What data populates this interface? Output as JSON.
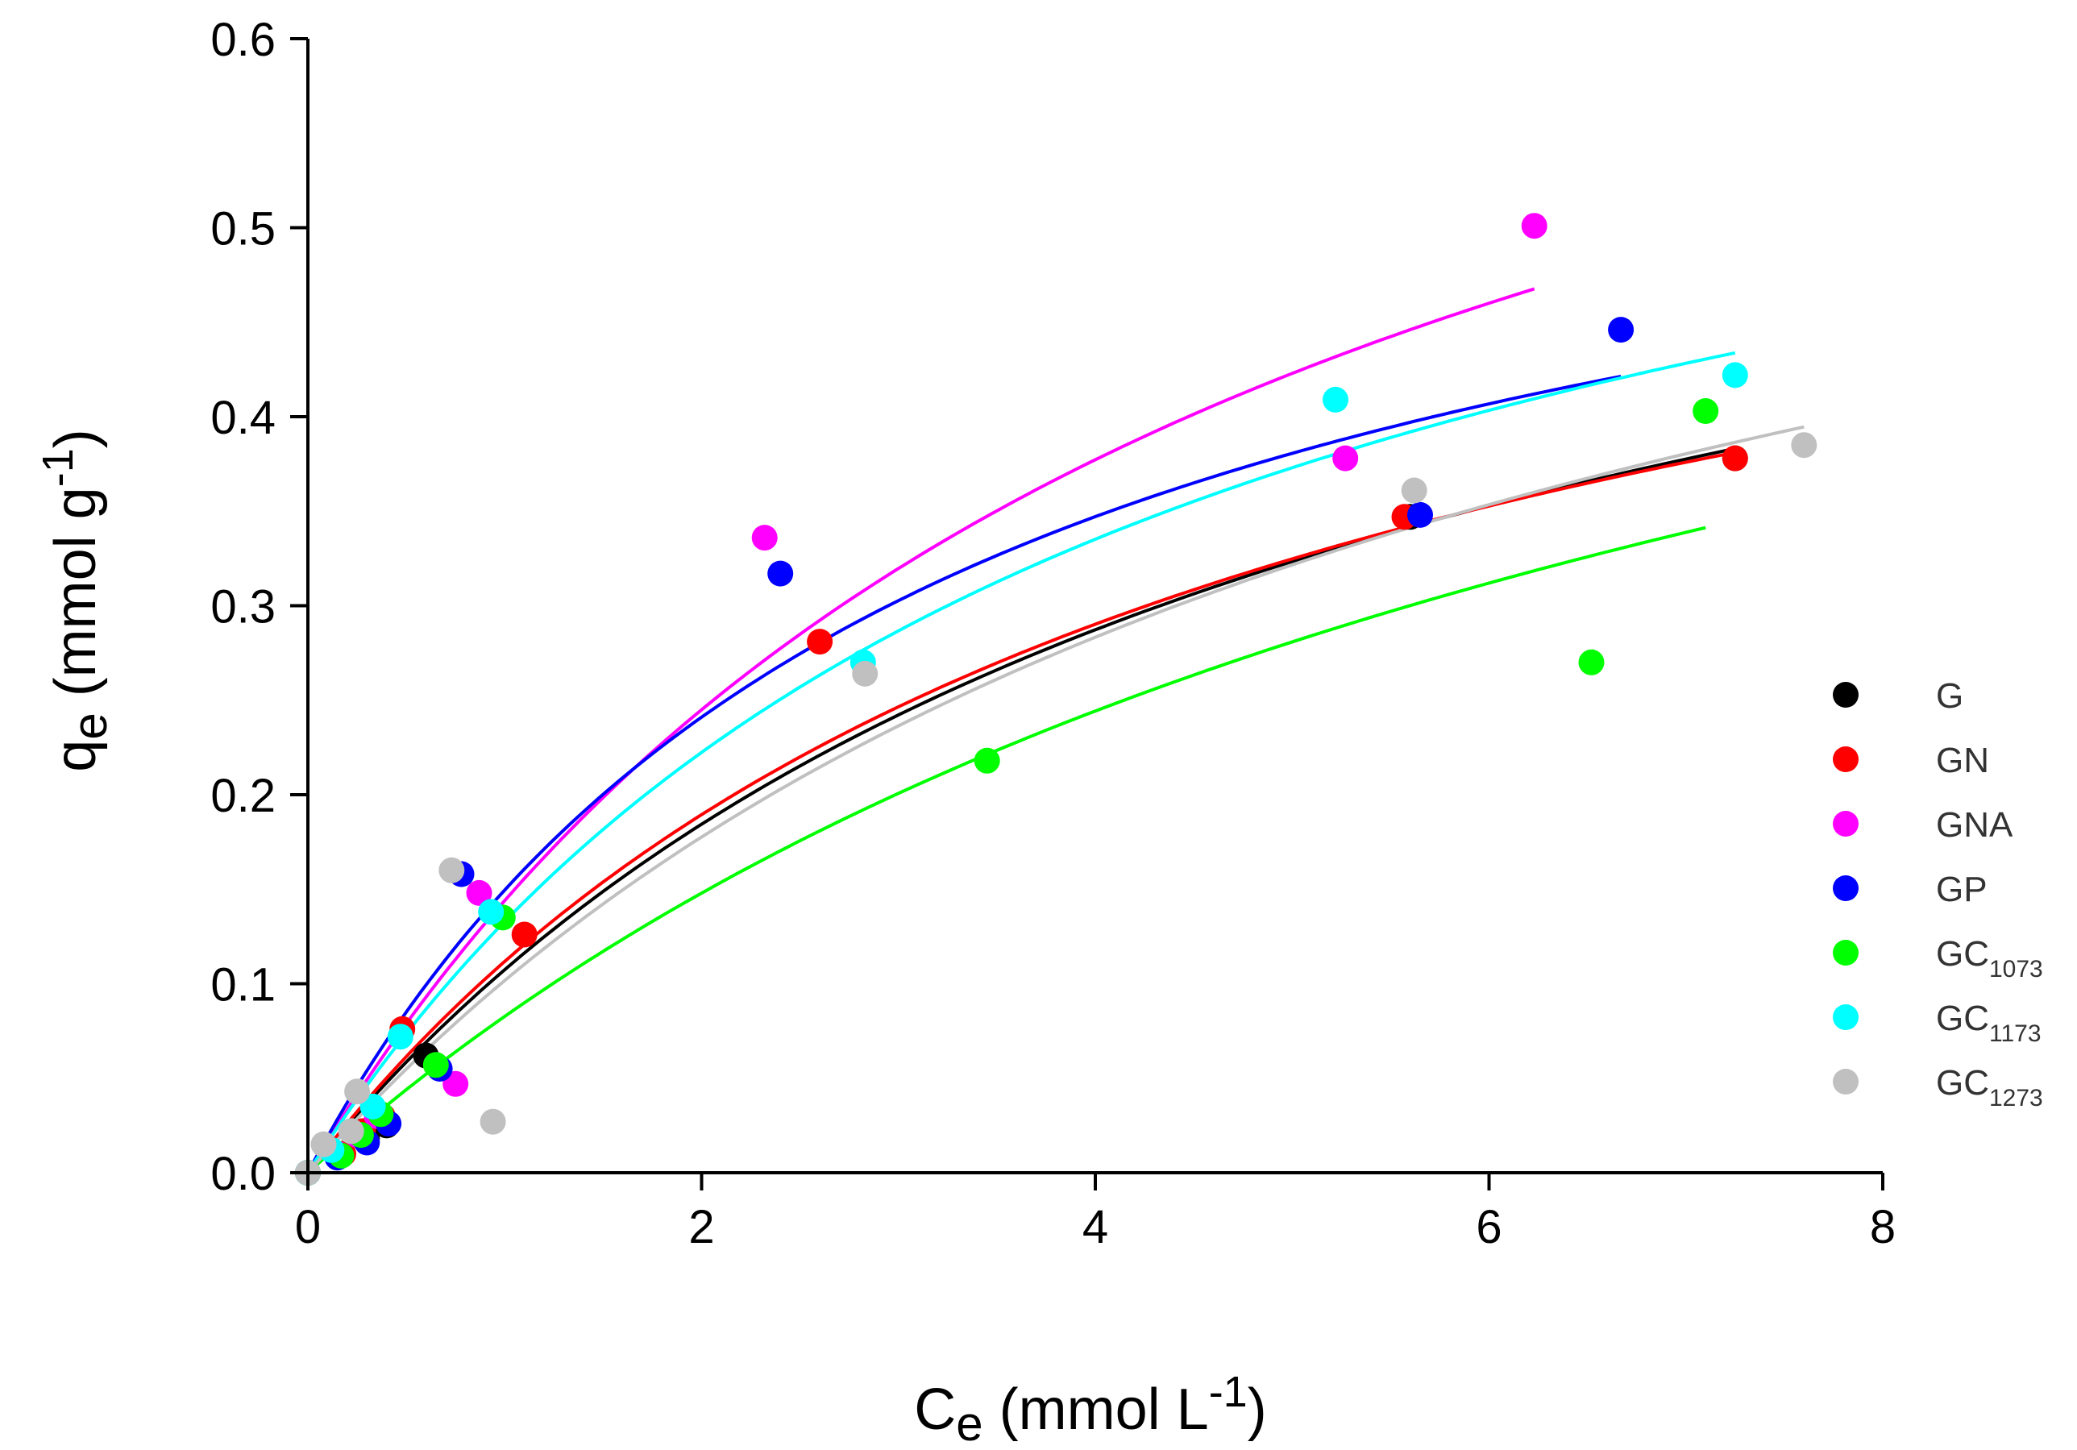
{
  "chart_data": {
    "type": "scatter",
    "title": "",
    "xlabel": "Ce (mmol L-1)",
    "ylabel": "qe (mmol g-1)",
    "xlabel_parts": {
      "base": "C",
      "sub": "e",
      "mid": " (mmol L",
      "sup": "-1",
      "end": ")"
    },
    "ylabel_parts": {
      "base": "q",
      "sub": "e",
      "mid": " (mmol g",
      "sup": "-1",
      "end": ")"
    },
    "xlim": [
      0,
      8
    ],
    "ylim": [
      0,
      0.6
    ],
    "x_ticks": [
      0,
      2,
      4,
      6,
      8
    ],
    "x_tick_labels": [
      "0",
      "2",
      "4",
      "6",
      "8"
    ],
    "y_ticks": [
      0,
      0.1,
      0.2,
      0.3,
      0.4,
      0.5,
      0.6
    ],
    "y_tick_labels": [
      "0.0",
      "0.1",
      "0.2",
      "0.3",
      "0.4",
      "0.5",
      "0.6"
    ],
    "grid": false,
    "legend_position": "right",
    "series": [
      {
        "name": "G",
        "label_base": "G",
        "label_sub": "",
        "color": "#000000",
        "points": [
          [
            0.0,
            0.0
          ],
          [
            0.15,
            0.01
          ],
          [
            0.3,
            0.018
          ],
          [
            0.4,
            0.025
          ],
          [
            0.6,
            0.062
          ],
          [
            5.6,
            0.347
          ],
          [
            7.25,
            0.378
          ]
        ],
        "fit": {
          "qm": 0.65,
          "k": 0.198,
          "xmax": 7.25
        }
      },
      {
        "name": "GN",
        "label_base": "GN",
        "label_sub": "",
        "color": "#ff0000",
        "points": [
          [
            0.0,
            0.0
          ],
          [
            0.18,
            0.01
          ],
          [
            0.28,
            0.022
          ],
          [
            0.38,
            0.03
          ],
          [
            0.48,
            0.076
          ],
          [
            1.1,
            0.126
          ],
          [
            2.6,
            0.281
          ],
          [
            5.57,
            0.347
          ],
          [
            7.25,
            0.378
          ]
        ],
        "fit": {
          "qm": 0.62,
          "k": 0.22,
          "xmax": 7.25
        }
      },
      {
        "name": "GNA",
        "label_base": "GNA",
        "label_sub": "",
        "color": "#ff00ff",
        "points": [
          [
            0.0,
            0.0
          ],
          [
            0.15,
            0.01
          ],
          [
            0.25,
            0.02
          ],
          [
            0.35,
            0.03
          ],
          [
            0.75,
            0.047
          ],
          [
            0.87,
            0.148
          ],
          [
            2.32,
            0.336
          ],
          [
            5.27,
            0.378
          ],
          [
            6.23,
            0.501
          ]
        ],
        "fit": {
          "qm": 0.82,
          "k": 0.213,
          "xmax": 6.23
        }
      },
      {
        "name": "GP",
        "label_base": "GP",
        "label_sub": "",
        "color": "#0000ff",
        "points": [
          [
            0.0,
            0.0
          ],
          [
            0.15,
            0.008
          ],
          [
            0.3,
            0.016
          ],
          [
            0.41,
            0.026
          ],
          [
            0.67,
            0.055
          ],
          [
            0.78,
            0.158
          ],
          [
            2.4,
            0.317
          ],
          [
            5.65,
            0.348
          ],
          [
            6.67,
            0.446
          ]
        ],
        "fit": {
          "qm": 0.62,
          "k": 0.318,
          "xmax": 6.67
        }
      },
      {
        "name": "GC1073",
        "label_base": "GC",
        "label_sub": "1073",
        "color": "#00ff00",
        "points": [
          [
            0.0,
            0.0
          ],
          [
            0.17,
            0.009
          ],
          [
            0.27,
            0.02
          ],
          [
            0.37,
            0.031
          ],
          [
            0.65,
            0.057
          ],
          [
            0.99,
            0.135
          ],
          [
            3.45,
            0.218
          ],
          [
            6.52,
            0.27
          ],
          [
            7.1,
            0.403
          ]
        ],
        "fit": {
          "qm": 0.7,
          "k": 0.134,
          "xmax": 7.1
        }
      },
      {
        "name": "GC1173",
        "label_base": "GC",
        "label_sub": "1173",
        "color": "#00ffff",
        "points": [
          [
            0.0,
            0.0
          ],
          [
            0.12,
            0.012
          ],
          [
            0.22,
            0.022
          ],
          [
            0.33,
            0.035
          ],
          [
            0.47,
            0.072
          ],
          [
            0.93,
            0.138
          ],
          [
            2.82,
            0.27
          ],
          [
            5.22,
            0.409
          ],
          [
            7.25,
            0.422
          ]
        ],
        "fit": {
          "qm": 0.68,
          "k": 0.243,
          "xmax": 7.25
        }
      },
      {
        "name": "GC1273",
        "label_base": "GC",
        "label_sub": "1273",
        "color": "#c0c0c0",
        "points": [
          [
            0.0,
            0.0
          ],
          [
            0.08,
            0.015
          ],
          [
            0.22,
            0.022
          ],
          [
            0.25,
            0.043
          ],
          [
            0.73,
            0.16
          ],
          [
            0.94,
            0.027
          ],
          [
            2.83,
            0.264
          ],
          [
            5.62,
            0.361
          ],
          [
            7.6,
            0.385
          ]
        ],
        "fit": {
          "qm": 0.7,
          "k": 0.17,
          "xmax": 7.6
        }
      }
    ]
  }
}
